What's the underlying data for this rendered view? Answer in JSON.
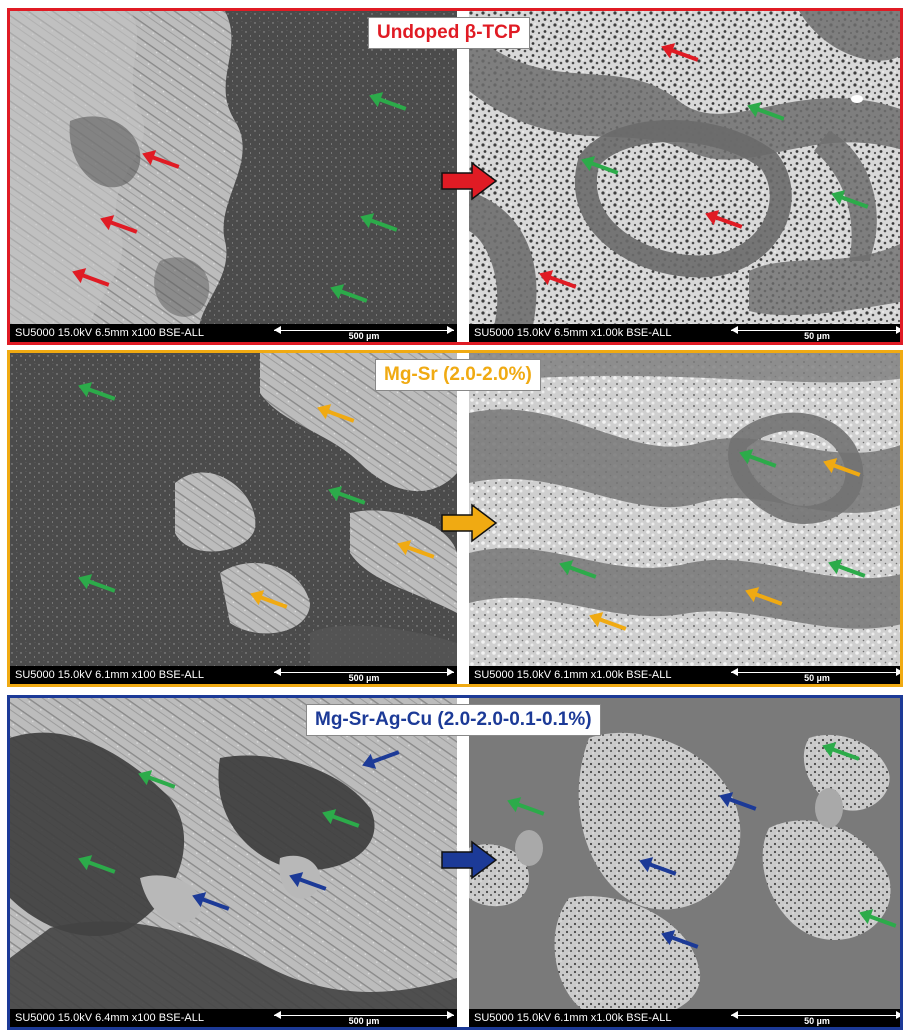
{
  "figure": {
    "colors": {
      "undoped": "#e01b24",
      "mg_sr": "#f0aa12",
      "mg_sr_ag_cu": "#1c3a97",
      "green_arrow": "#2cab4a"
    },
    "panels": [
      {
        "label": "Undoped β-TCP",
        "color": "#e01b24",
        "left": {
          "meta": "SU5000 15.0kV 6.5mm x100 BSE-ALL",
          "scale": "500 µm"
        },
        "right": {
          "meta": "SU5000 15.0kV 6.5mm x1.00k BSE-ALL",
          "scale": "50 µm"
        }
      },
      {
        "label": "Mg-Sr (2.0-2.0%)",
        "color": "#f0aa12",
        "left": {
          "meta": "SU5000 15.0kV 6.1mm x100 BSE-ALL",
          "scale": "500 µm"
        },
        "right": {
          "meta": "SU5000 15.0kV 6.1mm x1.00k BSE-ALL",
          "scale": "50 µm"
        }
      },
      {
        "label": "Mg-Sr-Ag-Cu (2.0-2.0-0.1-0.1%)",
        "color": "#1c3a97",
        "left": {
          "meta": "SU5000 15.0kV 6.4mm x100 BSE-ALL",
          "scale": "500 µm"
        },
        "right": {
          "meta": "SU5000 15.0kV 6.1mm x1.00k BSE-ALL",
          "scale": "50 µm"
        }
      }
    ]
  }
}
